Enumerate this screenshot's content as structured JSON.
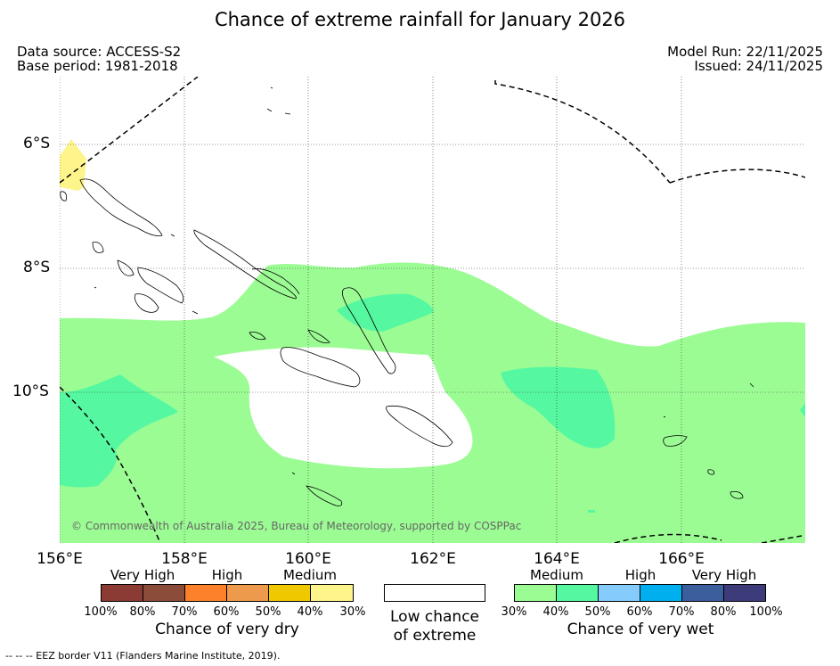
{
  "title": "Chance of extreme rainfall for January 2026",
  "data_source": "Data source: ACCESS-S2",
  "base_period": "Base period: 1981-2018",
  "model_run": "Model Run: 22/11/2025",
  "issued": "Issued: 24/11/2025",
  "map": {
    "latitude_labels": [
      "6°S",
      "8°S",
      "10°S"
    ],
    "longitude_labels": [
      "156°E",
      "158°E",
      "160°E",
      "162°E",
      "164°E",
      "166°E"
    ],
    "copyright": "© Commonwealth of Australia 2025, Bureau of Meteorology, supported by COSPPac",
    "colors": {
      "medium_wet": "#9cfc94",
      "high_wet_40": "#55f8a0",
      "medium_dry": "#fef48c",
      "land_outline": "#000000"
    }
  },
  "legend": {
    "dry": {
      "headers": [
        "Very High",
        "High",
        "Medium"
      ],
      "percent_labels": [
        "100%",
        "80%",
        "70%",
        "60%",
        "50%",
        "40%",
        "30%"
      ],
      "colors": [
        "#8b3a34",
        "#8c4c3a",
        "#fd812a",
        "#ee9a4c",
        "#f0c800",
        "#fef48c"
      ],
      "caption": "Chance of very dry"
    },
    "neutral": {
      "caption_line1": "Low chance",
      "caption_line2": "of extreme",
      "color": "#ffffff"
    },
    "wet": {
      "headers": [
        "Medium",
        "High",
        "Very High"
      ],
      "percent_labels": [
        "30%",
        "40%",
        "50%",
        "60%",
        "70%",
        "80%",
        "100%"
      ],
      "colors": [
        "#9cfc94",
        "#55f8a0",
        "#85cbfb",
        "#00b0ee",
        "#3b5f9d",
        "#3d3b7a"
      ],
      "caption": "Chance of very wet"
    }
  },
  "footer": "--  --  -- EEZ border V11 (Flanders Marine Institute, 2019)."
}
